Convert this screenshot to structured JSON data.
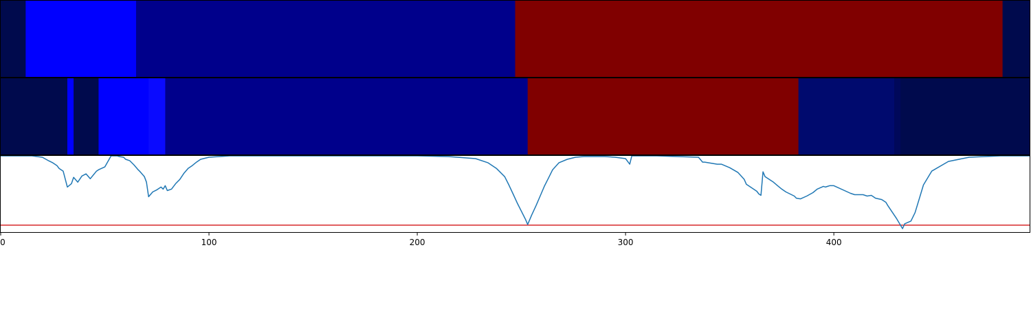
{
  "chart_data": [
    {
      "type": "heatmap",
      "title": "",
      "xlim": [
        0,
        494
      ],
      "segments": [
        {
          "x0": 0,
          "x1": 12,
          "color": "#000a4d"
        },
        {
          "x0": 12,
          "x1": 65,
          "color": "#0000ff"
        },
        {
          "x0": 65,
          "x1": 247,
          "color": "#00008b"
        },
        {
          "x0": 247,
          "x1": 481,
          "color": "#800000"
        },
        {
          "x0": 481,
          "x1": 494,
          "color": "#000a4d"
        }
      ]
    },
    {
      "type": "heatmap",
      "title": "",
      "xlim": [
        0,
        494
      ],
      "segments": [
        {
          "x0": 0,
          "x1": 32,
          "color": "#000a4d"
        },
        {
          "x0": 32,
          "x1": 35,
          "color": "#0000ff"
        },
        {
          "x0": 35,
          "x1": 47,
          "color": "#000a4d"
        },
        {
          "x0": 47,
          "x1": 71,
          "color": "#0000ff"
        },
        {
          "x0": 71,
          "x1": 79,
          "color": "#0a0aff"
        },
        {
          "x0": 79,
          "x1": 253,
          "color": "#00008b"
        },
        {
          "x0": 253,
          "x1": 383,
          "color": "#800000"
        },
        {
          "x0": 383,
          "x1": 429,
          "color": "#000a6e"
        },
        {
          "x0": 429,
          "x1": 432,
          "color": "#00085a"
        },
        {
          "x0": 432,
          "x1": 494,
          "color": "#000a4d"
        }
      ]
    },
    {
      "type": "line",
      "title": "",
      "xlabel": "",
      "ylabel": "",
      "xlim": [
        0,
        494
      ],
      "ylim": [
        -0.1,
        1.0
      ],
      "x_ticks": [
        "0",
        "100",
        "200",
        "300",
        "400"
      ],
      "x_tick_values": [
        0,
        100,
        200,
        300,
        400
      ],
      "series": [
        {
          "color": "#1f77b4",
          "x": [
            0,
            15,
            20,
            23,
            25,
            27,
            28,
            30,
            32,
            34,
            35,
            37,
            39,
            41,
            43,
            46,
            47,
            50,
            53,
            56,
            57,
            59,
            60,
            62,
            64,
            66,
            67,
            69,
            70,
            71,
            73,
            75,
            77,
            78,
            79,
            80,
            82,
            84,
            86,
            88,
            90,
            92,
            94,
            96,
            100,
            110,
            120,
            140,
            160,
            180,
            200,
            215,
            228,
            234,
            238,
            242,
            244,
            246,
            248,
            250,
            252,
            253,
            255,
            257,
            259,
            261,
            263,
            265,
            268,
            272,
            276,
            280,
            290,
            295,
            300,
            302,
            303,
            305,
            315,
            325,
            335,
            337,
            338,
            344,
            346,
            350,
            354,
            357,
            358,
            360,
            363,
            364,
            365,
            366,
            367,
            369,
            371,
            373,
            375,
            377,
            379,
            381,
            382,
            384,
            387,
            390,
            392,
            395,
            396,
            397,
            398,
            400,
            408,
            410,
            414,
            416,
            418,
            420,
            423,
            425,
            426,
            430,
            433,
            434,
            437,
            439,
            441,
            443,
            447,
            455,
            465,
            480,
            494
          ],
          "y": [
            1.0,
            1.0,
            0.98,
            0.93,
            0.9,
            0.86,
            0.82,
            0.78,
            0.55,
            0.6,
            0.69,
            0.62,
            0.71,
            0.74,
            0.67,
            0.78,
            0.8,
            0.84,
            1.0,
            1.0,
            0.99,
            0.98,
            0.95,
            0.93,
            0.87,
            0.8,
            0.77,
            0.7,
            0.62,
            0.41,
            0.48,
            0.51,
            0.55,
            0.52,
            0.57,
            0.5,
            0.52,
            0.6,
            0.66,
            0.75,
            0.82,
            0.86,
            0.91,
            0.95,
            0.98,
            1.0,
            1.0,
            1.0,
            1.0,
            1.0,
            1.0,
            0.99,
            0.96,
            0.9,
            0.82,
            0.7,
            0.58,
            0.45,
            0.32,
            0.2,
            0.08,
            0.01,
            0.15,
            0.28,
            0.42,
            0.56,
            0.68,
            0.8,
            0.9,
            0.95,
            0.98,
            0.99,
            0.99,
            0.98,
            0.96,
            0.88,
            1.0,
            1.0,
            1.0,
            0.99,
            0.98,
            0.91,
            0.91,
            0.88,
            0.88,
            0.83,
            0.76,
            0.66,
            0.59,
            0.55,
            0.49,
            0.45,
            0.43,
            0.77,
            0.7,
            0.66,
            0.62,
            0.57,
            0.52,
            0.48,
            0.45,
            0.42,
            0.39,
            0.38,
            0.42,
            0.47,
            0.52,
            0.56,
            0.55,
            0.56,
            0.57,
            0.57,
            0.46,
            0.44,
            0.44,
            0.42,
            0.43,
            0.39,
            0.37,
            0.33,
            0.28,
            0.1,
            -0.05,
            0.02,
            0.06,
            0.18,
            0.38,
            0.58,
            0.78,
            0.92,
            0.98,
            1.0,
            1.0
          ],
          "name": ""
        }
      ],
      "hlines": [
        {
          "y": 0.0,
          "color": "#d62728"
        }
      ]
    }
  ]
}
